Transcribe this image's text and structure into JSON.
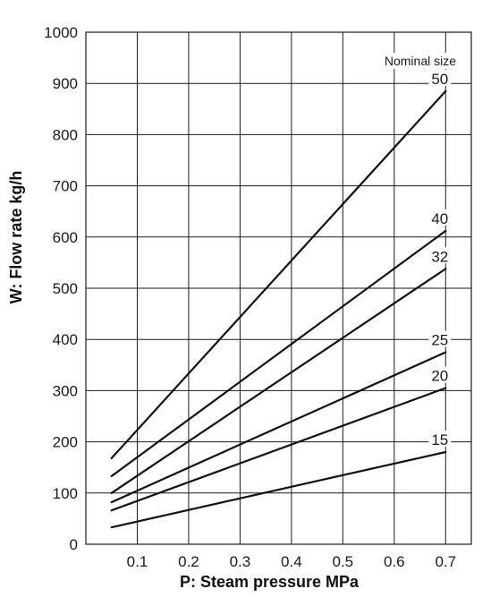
{
  "chart_data": {
    "type": "line",
    "title": "",
    "xlabel": "P: Steam pressure MPa",
    "ylabel": "W: Flow rate kg/h",
    "xlim": [
      0,
      0.75
    ],
    "ylim": [
      0,
      1000
    ],
    "x_ticks": [
      0.1,
      0.2,
      0.3,
      0.4,
      0.5,
      0.6,
      0.7
    ],
    "x_tick_labels": [
      "0.1",
      "0.2",
      "0.3",
      "0.4",
      "0.5",
      "0.6",
      "0.7"
    ],
    "y_ticks": [
      0,
      100,
      200,
      300,
      400,
      500,
      600,
      700,
      800,
      900,
      1000
    ],
    "y_tick_labels": [
      "0",
      "100",
      "200",
      "300",
      "400",
      "500",
      "600",
      "700",
      "800",
      "900",
      "1000"
    ],
    "grid": true,
    "legend_title": "Nominal size",
    "series": [
      {
        "name": "50",
        "x": [
          0.05,
          0.7
        ],
        "values": [
          168,
          885
        ]
      },
      {
        "name": "40",
        "x": [
          0.05,
          0.7
        ],
        "values": [
          133,
          612
        ]
      },
      {
        "name": "32",
        "x": [
          0.05,
          0.7
        ],
        "values": [
          100,
          538
        ]
      },
      {
        "name": "25",
        "x": [
          0.05,
          0.7
        ],
        "values": [
          82,
          375
        ]
      },
      {
        "name": "20",
        "x": [
          0.05,
          0.7
        ],
        "values": [
          66,
          305
        ]
      },
      {
        "name": "15",
        "x": [
          0.05,
          0.7
        ],
        "values": [
          33,
          180
        ]
      }
    ],
    "colors": {
      "line": "#111111",
      "grid": "#1a1a1a",
      "text": "#1a1a1a"
    }
  }
}
